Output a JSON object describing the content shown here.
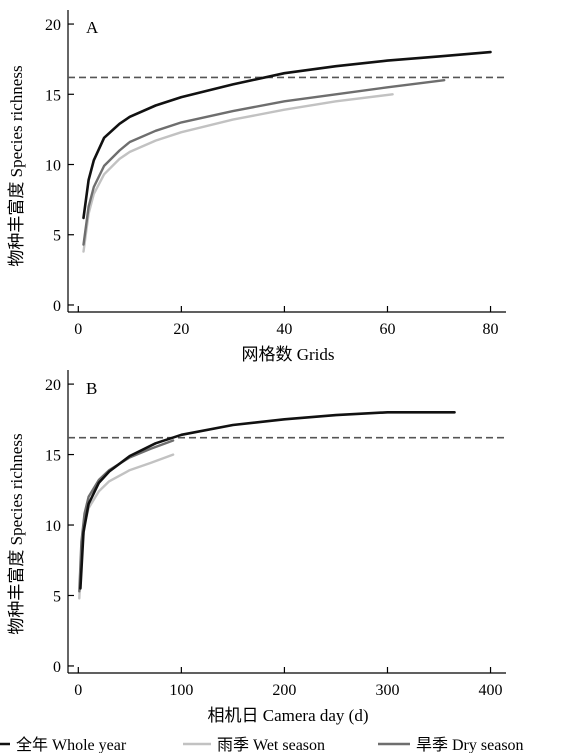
{
  "chart_data": [
    {
      "type": "line",
      "panel_label": "A",
      "xlabel": "网格数 Grids",
      "ylabel": "物种丰富度 Species richness",
      "xlim": [
        -2,
        83
      ],
      "ylim": [
        -0.5,
        21
      ],
      "xticks": [
        0,
        20,
        40,
        60,
        80
      ],
      "yticks": [
        0,
        5,
        10,
        15,
        20
      ],
      "reference_line": 16.2,
      "series": [
        {
          "name": "全年 Whole year",
          "color": "#111111",
          "x": [
            1,
            2,
            3,
            5,
            8,
            10,
            15,
            20,
            30,
            40,
            50,
            60,
            70,
            80
          ],
          "y": [
            6.2,
            8.9,
            10.3,
            11.9,
            12.9,
            13.4,
            14.2,
            14.8,
            15.7,
            16.5,
            17.0,
            17.4,
            17.7,
            18.0
          ]
        },
        {
          "name": "雨季 Wet season",
          "color": "#c2c2c2",
          "x": [
            1,
            2,
            3,
            5,
            8,
            10,
            15,
            20,
            30,
            40,
            50,
            61
          ],
          "y": [
            3.8,
            6.5,
            7.9,
            9.3,
            10.4,
            10.9,
            11.7,
            12.3,
            13.2,
            13.9,
            14.5,
            15.0
          ]
        },
        {
          "name": "旱季 Dry season",
          "color": "#6e6e6e",
          "x": [
            1,
            2,
            3,
            5,
            8,
            10,
            15,
            20,
            30,
            40,
            50,
            60,
            71
          ],
          "y": [
            4.3,
            7.0,
            8.4,
            9.9,
            11.0,
            11.6,
            12.4,
            13.0,
            13.8,
            14.5,
            15.0,
            15.5,
            16.0
          ]
        }
      ]
    },
    {
      "type": "line",
      "panel_label": "B",
      "xlabel": "相机日 Camera day (d)",
      "ylabel": "物种丰富度 Species richness",
      "xlim": [
        -10,
        415
      ],
      "ylim": [
        -0.5,
        21
      ],
      "xticks": [
        0,
        100,
        200,
        300,
        400
      ],
      "yticks": [
        0,
        5,
        10,
        15,
        20
      ],
      "reference_line": 16.2,
      "series": [
        {
          "name": "全年 Whole year",
          "color": "#111111",
          "x": [
            2,
            5,
            10,
            20,
            30,
            50,
            75,
            100,
            150,
            200,
            250,
            300,
            365
          ],
          "y": [
            5.5,
            9.5,
            11.5,
            13.0,
            13.8,
            14.9,
            15.8,
            16.4,
            17.1,
            17.5,
            17.8,
            18.0,
            18.0
          ]
        },
        {
          "name": "雨季 Wet season",
          "color": "#c2c2c2",
          "x": [
            1,
            3,
            6,
            10,
            20,
            30,
            50,
            70,
            92
          ],
          "y": [
            4.8,
            8.0,
            10.0,
            11.2,
            12.4,
            13.1,
            13.9,
            14.4,
            15.0
          ]
        },
        {
          "name": "旱季 Dry season",
          "color": "#6e6e6e",
          "x": [
            1,
            3,
            6,
            10,
            20,
            30,
            50,
            70,
            92
          ],
          "y": [
            5.3,
            8.8,
            10.8,
            12.0,
            13.2,
            13.9,
            14.8,
            15.4,
            16.0
          ]
        }
      ]
    }
  ],
  "legend": [
    {
      "label": "全年 Whole year",
      "color": "#111111"
    },
    {
      "label": "雨季 Wet season",
      "color": "#c2c2c2"
    },
    {
      "label": "旱季 Dry season",
      "color": "#6e6e6e"
    }
  ]
}
